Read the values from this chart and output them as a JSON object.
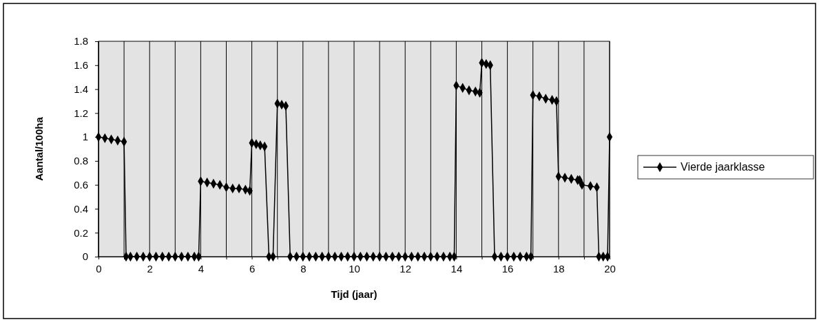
{
  "chart_data": {
    "type": "line",
    "xlabel": "Tijd (jaar)",
    "ylabel": "Aantal/100ha",
    "xlim": [
      0,
      20
    ],
    "ylim": [
      0,
      1.8
    ],
    "xticks": [
      0,
      {
        "value": 1,
        "label": null
      },
      2,
      {
        "value": 3,
        "label": null
      },
      4,
      {
        "value": 5,
        "label": null
      },
      6,
      {
        "value": 7,
        "label": null
      },
      8,
      {
        "value": 9,
        "label": null
      },
      10,
      {
        "value": 11,
        "label": null
      },
      12,
      {
        "value": 13,
        "label": null
      },
      14,
      {
        "value": 15,
        "label": null
      },
      16,
      {
        "value": 17,
        "label": null
      },
      18,
      {
        "value": 19,
        "label": null
      },
      20
    ],
    "yticks": [
      0,
      0.2,
      0.4,
      0.6,
      0.8,
      1,
      1.2,
      1.4,
      1.6,
      1.8
    ],
    "grid": "x",
    "legend": "right",
    "marker": "diamond",
    "line_style": "solid",
    "series": [
      {
        "name": "Vierde jaarklasse",
        "color": "#000000",
        "x": [
          0,
          0.25,
          0.5,
          0.75,
          1,
          1.08,
          1.25,
          1.5,
          1.75,
          2,
          2.25,
          2.5,
          2.75,
          3,
          3.25,
          3.5,
          3.75,
          3.92,
          4,
          4.25,
          4.5,
          4.75,
          5,
          5.25,
          5.5,
          5.75,
          5.92,
          6,
          6.17,
          6.33,
          6.5,
          6.67,
          6.83,
          7,
          7.17,
          7.33,
          7.5,
          7.75,
          8,
          8.25,
          8.5,
          8.75,
          9,
          9.25,
          9.5,
          9.75,
          10,
          10.25,
          10.5,
          10.75,
          11,
          11.25,
          11.5,
          11.75,
          12,
          12.25,
          12.5,
          12.75,
          13,
          13.25,
          13.5,
          13.75,
          13.92,
          14,
          14.25,
          14.5,
          14.75,
          14.92,
          15,
          15.17,
          15.33,
          15.5,
          15.75,
          16,
          16.25,
          16.5,
          16.75,
          16.92,
          17,
          17.25,
          17.5,
          17.75,
          17.92,
          18,
          18.25,
          18.5,
          18.75,
          18.83,
          18.92,
          19.25,
          19.5,
          19.58,
          19.75,
          19.92,
          20
        ],
        "values": [
          1,
          0.99,
          0.98,
          0.97,
          0.96,
          0,
          0,
          0,
          0,
          0,
          0,
          0,
          0,
          0,
          0,
          0,
          0,
          0,
          0.63,
          0.62,
          0.61,
          0.6,
          0.58,
          0.57,
          0.57,
          0.56,
          0.55,
          0.95,
          0.94,
          0.93,
          0.92,
          0,
          0,
          1.28,
          1.27,
          1.26,
          0,
          0,
          0,
          0,
          0,
          0,
          0,
          0,
          0,
          0,
          0,
          0,
          0,
          0,
          0,
          0,
          0,
          0,
          0,
          0,
          0,
          0,
          0,
          0,
          0,
          0,
          0,
          1.43,
          1.41,
          1.39,
          1.38,
          1.37,
          1.62,
          1.61,
          1.6,
          0,
          0,
          0,
          0,
          0,
          0,
          0,
          1.35,
          1.34,
          1.32,
          1.31,
          1.3,
          0.67,
          0.66,
          0.65,
          0.64,
          0.64,
          0.6,
          0.59,
          0.58,
          0,
          0,
          0,
          1
        ]
      }
    ]
  }
}
